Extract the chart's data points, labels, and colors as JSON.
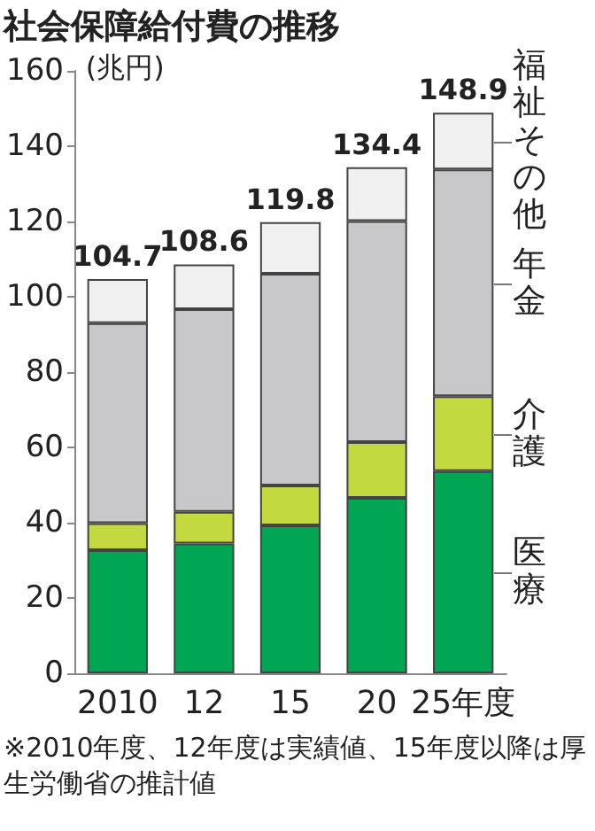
{
  "chart_data": {
    "type": "bar",
    "title": "社会保障給付費の推移",
    "ylabel": "(兆円)",
    "annotations": [
      "※2010年度、12年度は実績値、15年度以降は厚生労働省の推計値"
    ],
    "categories": [
      "2010",
      "12",
      "15",
      "20",
      "25年度"
    ],
    "stacked": true,
    "series": [
      {
        "name": "医療",
        "color": "#00a651",
        "values": [
          32.7,
          34.5,
          39.3,
          46.6,
          53.7
        ]
      },
      {
        "name": "介護",
        "color": "#c4d940",
        "values": [
          7.2,
          8.4,
          10.6,
          14.8,
          19.9
        ]
      },
      {
        "name": "年金",
        "color": "#c8c8ca",
        "values": [
          53.1,
          53.8,
          56.2,
          58.7,
          60.2
        ]
      },
      {
        "name": "福祉その他",
        "color": "#f0f0f0",
        "values": [
          11.7,
          11.9,
          13.7,
          14.3,
          15.1
        ]
      }
    ],
    "totals": [
      "104.7",
      "108.6",
      "119.8",
      "134.4",
      "148.9"
    ],
    "ylim": [
      0,
      160
    ],
    "yticks": [
      0,
      20,
      40,
      60,
      80,
      100,
      120,
      140,
      160
    ],
    "grid": false,
    "legend": "right"
  }
}
